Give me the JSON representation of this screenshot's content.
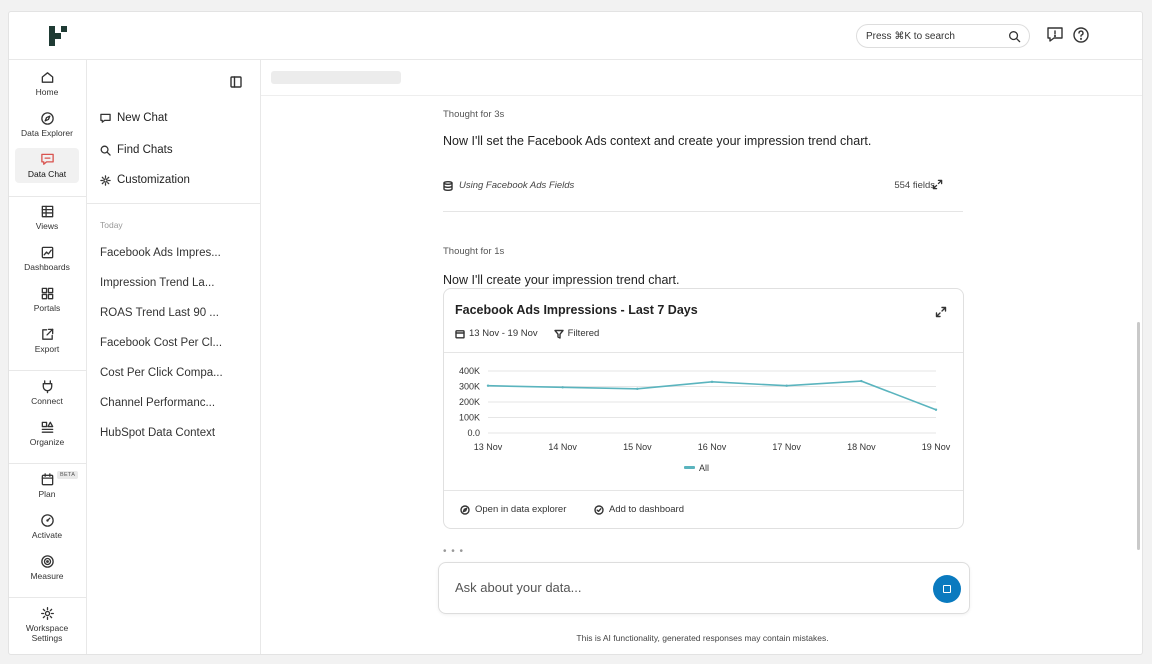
{
  "search": {
    "placeholder": "Press ⌘K to search"
  },
  "nav": [
    {
      "label": "Home",
      "icon": "home-icon"
    },
    {
      "label": "Data Explorer",
      "icon": "compass-icon"
    },
    {
      "label": "Data Chat",
      "icon": "chat-icon",
      "active": true
    },
    {
      "label": "Views",
      "icon": "table-icon"
    },
    {
      "label": "Dashboards",
      "icon": "dashboard-icon"
    },
    {
      "label": "Portals",
      "icon": "portals-icon"
    },
    {
      "label": "Export",
      "icon": "export-icon"
    },
    {
      "label": "Connect",
      "icon": "plug-icon"
    },
    {
      "label": "Organize",
      "icon": "organize-icon"
    },
    {
      "label": "Plan",
      "icon": "calendar-icon",
      "badge": "BETA"
    },
    {
      "label": "Activate",
      "icon": "gauge-icon"
    },
    {
      "label": "Measure",
      "icon": "target-icon"
    },
    {
      "label": "Workspace Settings",
      "icon": "gear-icon"
    }
  ],
  "sidebar": {
    "actions": [
      "New Chat",
      "Find Chats",
      "Customization"
    ],
    "section_label": "Today",
    "history": [
      "Facebook Ads Impres...",
      "Impression Trend La...",
      "ROAS Trend Last 90 ...",
      "Facebook Cost Per Cl...",
      "Cost Per Click Compa...",
      "Channel Performanc...",
      "HubSpot Data Context"
    ]
  },
  "conversation": {
    "thought1": "Thought for 3s",
    "message1": "Now I'll set the Facebook Ads context and create your impression trend chart.",
    "fields_label": "Using Facebook Ads Fields",
    "fields_count": "554 fields",
    "thought2": "Thought for 1s",
    "message2": "Now I'll create your impression trend chart.",
    "typing": "• • •"
  },
  "card": {
    "title": "Facebook Ads Impressions - Last 7 Days",
    "date_range": "13 Nov - 19 Nov",
    "filter_label": "Filtered",
    "action_explore": "Open in data explorer",
    "action_dashboard": "Add to dashboard"
  },
  "chart_data": {
    "type": "line",
    "title": "Facebook Ads Impressions - Last 7 Days",
    "xlabel": "",
    "ylabel": "",
    "categories": [
      "13 Nov",
      "14 Nov",
      "15 Nov",
      "16 Nov",
      "17 Nov",
      "18 Nov",
      "19 Nov"
    ],
    "series": [
      {
        "name": "All",
        "values": [
          305000,
          295000,
          285000,
          330000,
          305000,
          335000,
          150000
        ],
        "color": "#5ab4be"
      }
    ],
    "y_ticks": [
      "0.0",
      "100K",
      "200K",
      "300K",
      "400K"
    ],
    "ylim": [
      0,
      400000
    ],
    "grid": true,
    "legend": "bottom-center"
  },
  "composer": {
    "placeholder": "Ask about your data...",
    "disclaimer": "This is AI functionality, generated responses may contain mistakes."
  }
}
